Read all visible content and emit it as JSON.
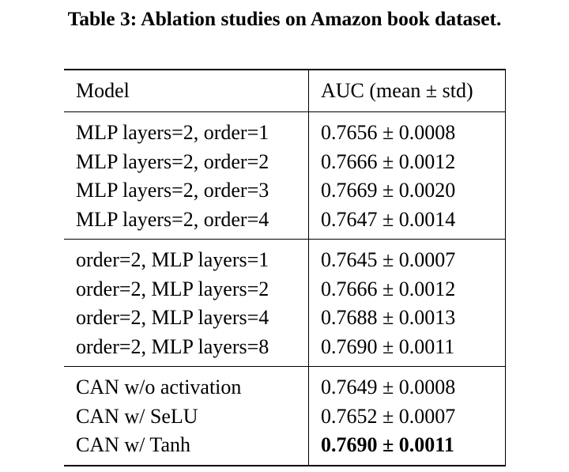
{
  "caption": "Table 3: Ablation studies on Amazon book dataset.",
  "table": {
    "headers": [
      "Model",
      "AUC (mean ± std)"
    ],
    "groups": [
      {
        "rows": [
          {
            "model": "MLP layers=2, order=1",
            "auc": "0.7656 ± 0.0008"
          },
          {
            "model": "MLP layers=2, order=2",
            "auc": "0.7666 ± 0.0012"
          },
          {
            "model": "MLP layers=2, order=3",
            "auc": "0.7669 ± 0.0020"
          },
          {
            "model": "MLP layers=2, order=4",
            "auc": "0.7647 ± 0.0014"
          }
        ]
      },
      {
        "rows": [
          {
            "model": "order=2, MLP layers=1",
            "auc": "0.7645 ± 0.0007"
          },
          {
            "model": "order=2, MLP layers=2",
            "auc": "0.7666 ± 0.0012"
          },
          {
            "model": "order=2, MLP layers=4",
            "auc": "0.7688 ± 0.0013"
          },
          {
            "model": "order=2, MLP layers=8",
            "auc": "0.7690 ± 0.0011"
          }
        ]
      },
      {
        "rows": [
          {
            "model": "CAN w/o activation",
            "auc": "0.7649 ± 0.0008"
          },
          {
            "model": "CAN w/ SeLU",
            "auc": "0.7652 ± 0.0007"
          },
          {
            "model": "CAN w/ Tanh",
            "auc": "0.7690 ± 0.0011",
            "bold": true
          }
        ]
      }
    ]
  }
}
